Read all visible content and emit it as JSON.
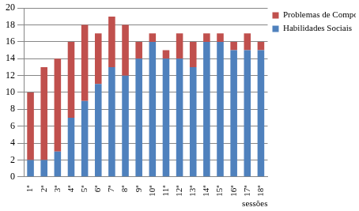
{
  "chart_data": {
    "type": "bar",
    "stacked": true,
    "grid": true,
    "legend": "top right",
    "x_label": "sessões",
    "categories": [
      "1ª",
      "2ª",
      "3ª",
      "4ª",
      "5ª",
      "6ª",
      "7ª",
      "8ª",
      "9ª",
      "10ª",
      "11ª",
      "12ª",
      "13ª",
      "14ª",
      "15ª",
      "16ª",
      "17ª",
      "18ª"
    ],
    "series": [
      {
        "name": "Habilidades Sociais",
        "color": "#4f81bd",
        "values": [
          2,
          2,
          3,
          7,
          9,
          11,
          13,
          12,
          14,
          16,
          14,
          14,
          13,
          16,
          16,
          15,
          15,
          15
        ]
      },
      {
        "name": "Problemas de Comportamento",
        "color": "#c0504d",
        "values": [
          8,
          11,
          11,
          9,
          9,
          6,
          6,
          6,
          2,
          1,
          1,
          3,
          3,
          1,
          1,
          1,
          2,
          1
        ]
      }
    ],
    "ylim": [
      0,
      20
    ],
    "yticks": [
      0,
      2,
      4,
      6,
      8,
      10,
      12,
      14,
      16,
      18,
      20
    ]
  }
}
